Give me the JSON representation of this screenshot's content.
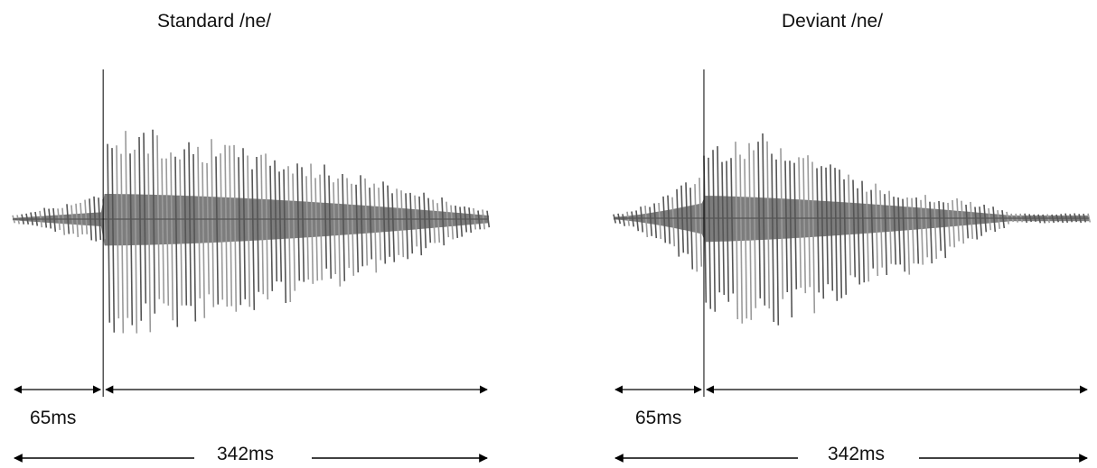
{
  "panels": [
    {
      "title": "Standard /ne/",
      "onset_label": "65ms",
      "total_label": "342ms",
      "onset_ms": 65,
      "total_ms": 342,
      "waveform": "standard"
    },
    {
      "title": "Deviant /ne/",
      "onset_label": "65ms",
      "total_label": "342ms",
      "onset_ms": 65,
      "total_ms": 342,
      "waveform": "deviant"
    }
  ],
  "colors": {
    "wave_dark": "#555555",
    "wave_light": "#9a9a9a",
    "wave_fill": "#7d7d7d",
    "line": "#000000"
  }
}
